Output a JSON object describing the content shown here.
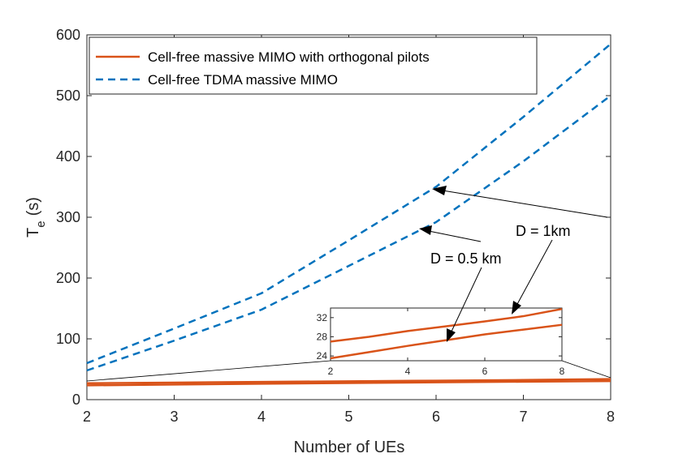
{
  "chart_data": {
    "type": "line",
    "title": "",
    "xlabel": "Number of UEs",
    "ylabel": "T",
    "ylabel_sub": "e",
    "ylabel_unit": "(s)",
    "xlim": [
      2,
      8
    ],
    "ylim": [
      0,
      600
    ],
    "xticks": [
      "2",
      "3",
      "4",
      "5",
      "6",
      "7",
      "8"
    ],
    "yticks": [
      "0",
      "100",
      "200",
      "300",
      "400",
      "500",
      "600"
    ],
    "legend": {
      "placement": "top-left",
      "entries": [
        "Cell-free massive MIMO with orthogonal pilots",
        "Cell-free TDMA massive MIMO"
      ]
    },
    "x": [
      2,
      3,
      4,
      5,
      6,
      7,
      8
    ],
    "series": [
      {
        "name": "Cell-free TDMA massive MIMO, D = 1km",
        "style": "dashed",
        "color": "#0072BD",
        "values": [
          60,
          117,
          175,
          262,
          350,
          465,
          585
        ]
      },
      {
        "name": "Cell-free TDMA massive MIMO, D = 0.5 km",
        "style": "dashed",
        "color": "#0072BD",
        "values": [
          48,
          97,
          148,
          220,
          292,
          392,
          500
        ]
      },
      {
        "name": "Cell-free massive MIMO with orthogonal pilots, D = 1km",
        "style": "solid",
        "color": "#D95319",
        "values": [
          27,
          28,
          29.2,
          30.2,
          31.2,
          32.3,
          33.8
        ]
      },
      {
        "name": "Cell-free massive MIMO with orthogonal pilots, D = 0.5 km",
        "style": "solid",
        "color": "#D95319",
        "values": [
          23.5,
          24.8,
          26.1,
          27.3,
          28.5,
          29.5,
          30.5
        ]
      }
    ],
    "inset": {
      "xlim": [
        2,
        8
      ],
      "ylim": [
        23,
        34
      ],
      "xticks": [
        "2",
        "4",
        "6",
        "8"
      ],
      "yticks": [
        "24",
        "28",
        "32"
      ]
    },
    "annotations": [
      "D = 1km",
      "D = 0.5 km"
    ]
  }
}
